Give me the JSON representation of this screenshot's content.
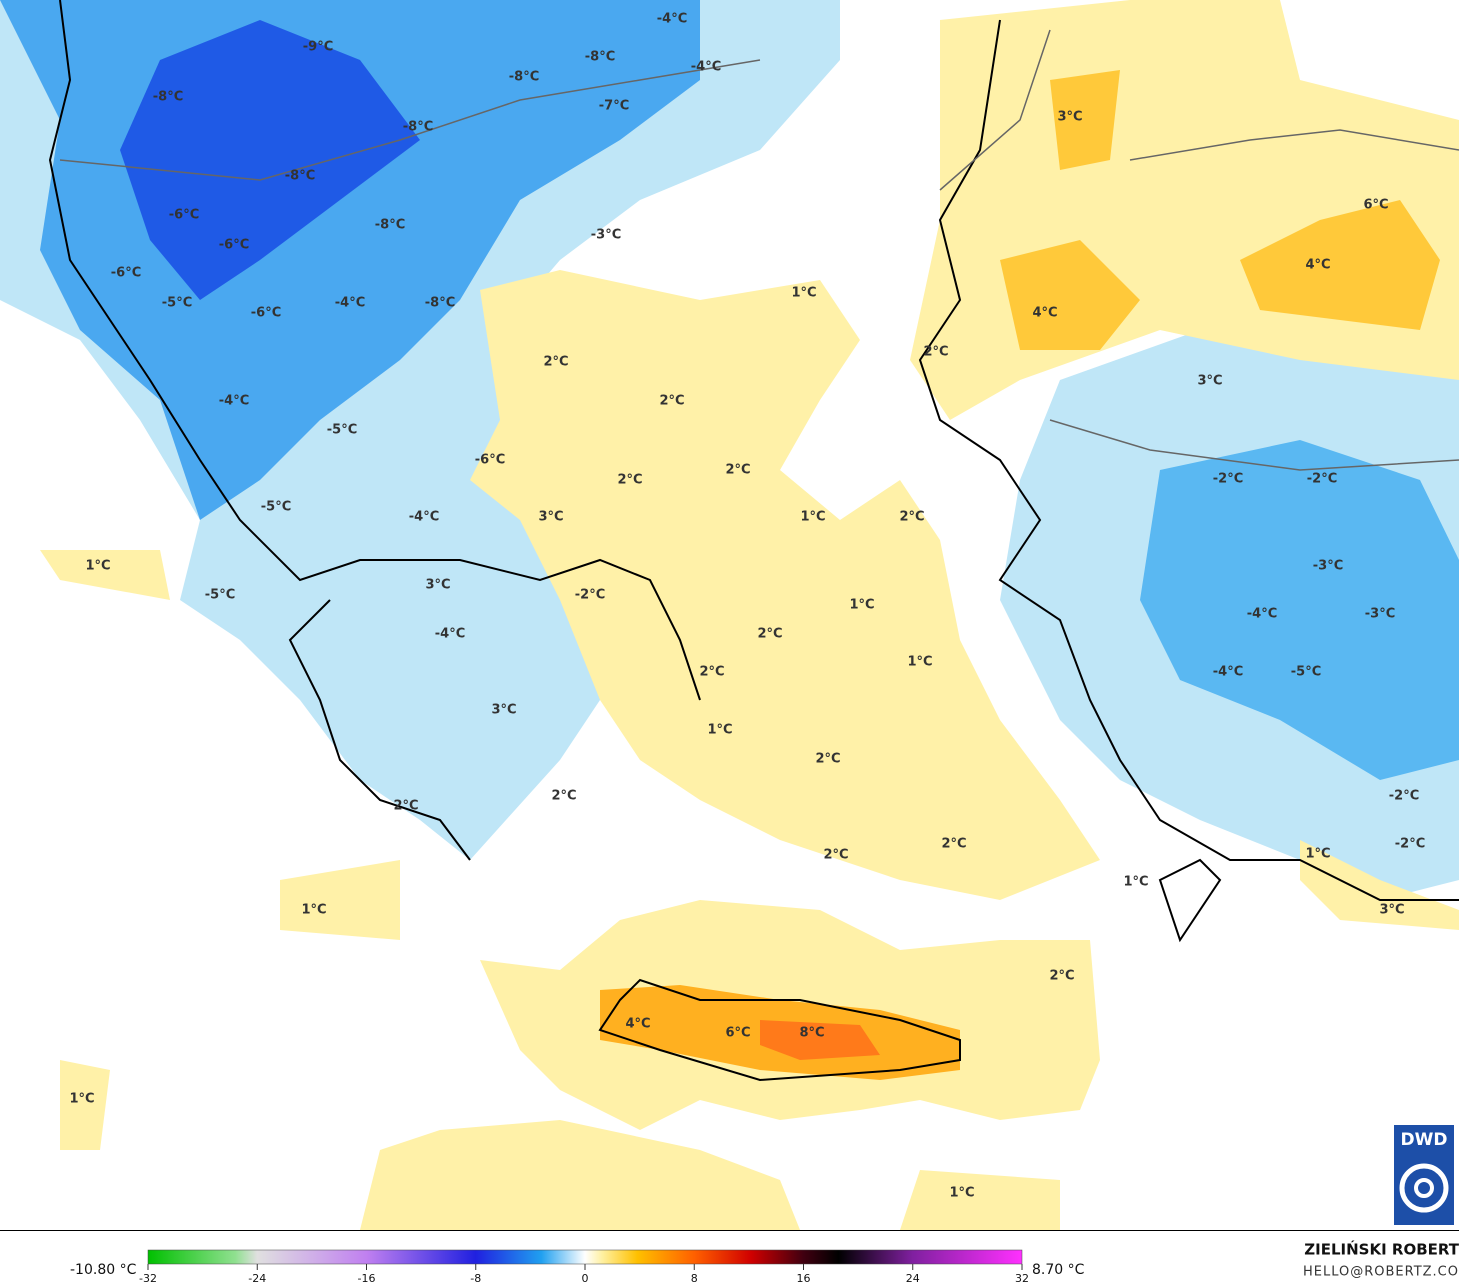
{
  "map": {
    "labels": [
      "-9°C",
      "-8°C",
      "-4°C",
      "-4°C",
      "-8°C",
      "-8°C",
      "-7°C",
      "-8°C",
      "-8°C",
      "-6°C",
      "-8°C",
      "-3°C",
      "-6°C",
      "-6°C",
      "-5°C",
      "-4°C",
      "-8°C",
      "-6°C",
      "1°C",
      "3°C",
      "6°C",
      "4°C",
      "4°C",
      "2°C",
      "2°C",
      "3°C",
      "-4°C",
      "2°C",
      "-5°C",
      "-6°C",
      "2°C",
      "2°C",
      "-2°C",
      "-2°C",
      "-5°C",
      "-4°C",
      "3°C",
      "1°C",
      "2°C",
      "1°C",
      "-3°C",
      "3°C",
      "-2°C",
      "-5°C",
      "1°C",
      "-4°C",
      "-3°C",
      "-4°C",
      "2°C",
      "1°C",
      "2°C",
      "-4°C",
      "-5°C",
      "3°C",
      "1°C",
      "2°C",
      "-2°C",
      "2°C",
      "2°C",
      "2°C",
      "-2°C",
      "2°C",
      "1°C",
      "1°C",
      "1°C",
      "3°C",
      "2°C",
      "4°C",
      "6°C",
      "8°C",
      "1°C",
      "1°C"
    ]
  },
  "colorbar": {
    "min_label": "-10.80 °C",
    "max_label": "8.70 °C",
    "range": [
      -32,
      32
    ],
    "ticks": [
      -32,
      -24,
      -16,
      -8,
      0,
      8,
      16,
      24,
      32
    ]
  },
  "credit": {
    "name": "ZIELIŃSKI ROBERT",
    "email": "HELLO@ROBERTZ.CO",
    "logo": "DWD"
  }
}
